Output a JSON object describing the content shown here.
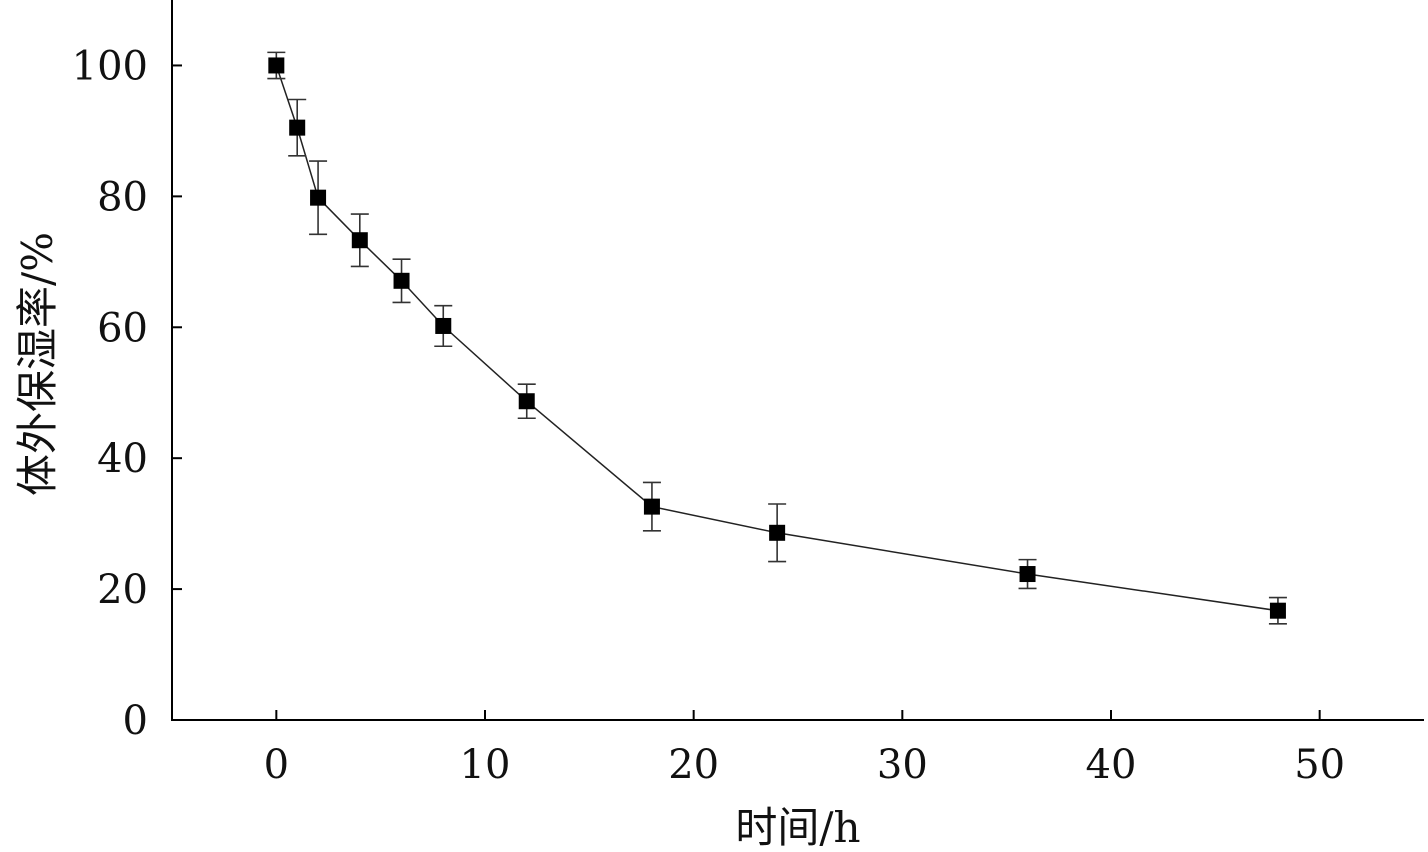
{
  "chart_data": {
    "type": "line",
    "title": "",
    "xlabel": "时间/h",
    "ylabel": "体外保湿率/%",
    "xlim": [
      -5,
      55
    ],
    "ylim": [
      0,
      110
    ],
    "x_ticks": [
      0,
      10,
      20,
      30,
      40,
      50
    ],
    "y_ticks": [
      0,
      20,
      40,
      60,
      80,
      100
    ],
    "grid": false,
    "legend": "none",
    "marker": "filled-square",
    "colors": {
      "line": "#222222",
      "marker": "#000000",
      "axis": "#000000"
    },
    "series": [
      {
        "x": [
          0,
          1,
          2,
          4,
          6,
          8,
          12,
          18,
          24,
          36,
          48
        ],
        "y": [
          100,
          90.5,
          79.8,
          73.3,
          67.1,
          60.2,
          48.7,
          32.6,
          28.6,
          22.3,
          16.7
        ],
        "error": [
          2.0,
          4.3,
          5.6,
          4.0,
          3.3,
          3.1,
          2.6,
          3.7,
          4.4,
          2.2,
          2.0
        ]
      }
    ]
  }
}
